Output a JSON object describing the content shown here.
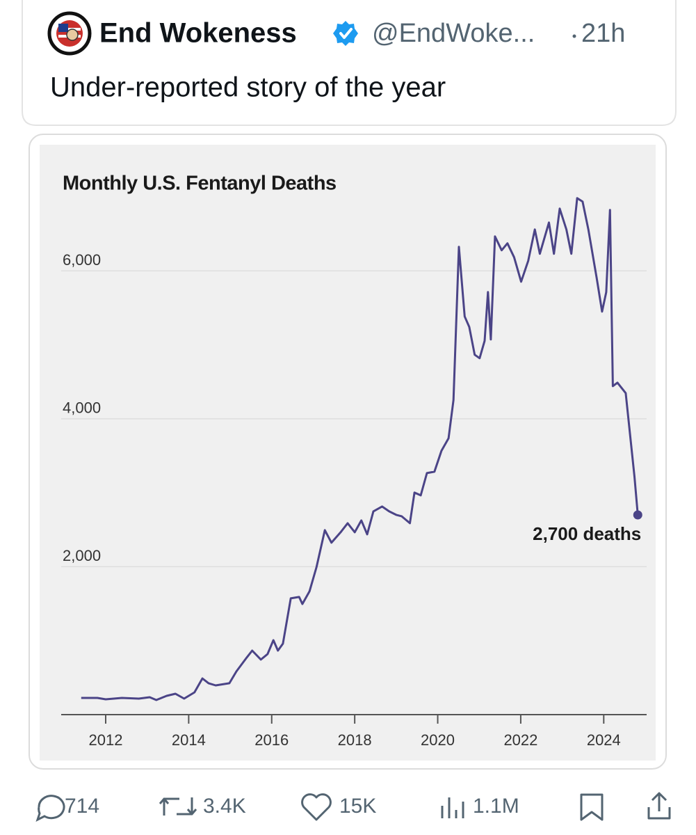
{
  "tweet": {
    "name": "End Wokeness",
    "handle": "@EndWoke...",
    "time": "21h",
    "text": "Under-reported story of the year",
    "stats": {
      "replies": "714",
      "reposts": "3.4K",
      "likes": "15K",
      "views": "1.1M"
    }
  },
  "chart_data": {
    "type": "line",
    "title": "Monthly U.S. Fentanyl Deaths",
    "x": [
      2011.41,
      2011.8,
      2012.0,
      2012.39,
      2012.8,
      2013.06,
      2013.22,
      2013.47,
      2013.68,
      2013.89,
      2014.14,
      2014.33,
      2014.48,
      2014.65,
      2014.98,
      2015.15,
      2015.4,
      2015.53,
      2015.74,
      2015.9,
      2016.04,
      2016.15,
      2016.27,
      2016.46,
      2016.66,
      2016.74,
      2016.91,
      2017.08,
      2017.28,
      2017.44,
      2017.66,
      2017.83,
      2018.0,
      2018.16,
      2018.3,
      2018.45,
      2018.66,
      2018.83,
      2019.0,
      2019.13,
      2019.33,
      2019.44,
      2019.59,
      2019.74,
      2019.92,
      2020.09,
      2020.26,
      2020.38,
      2020.51,
      2020.65,
      2020.76,
      2020.89,
      2021.01,
      2021.13,
      2021.21,
      2021.28,
      2021.38,
      2021.54,
      2021.68,
      2021.84,
      2022.01,
      2022.18,
      2022.34,
      2022.46,
      2022.68,
      2022.8,
      2022.94,
      2023.1,
      2023.22,
      2023.36,
      2023.49,
      2023.63,
      2023.83,
      2023.96,
      2024.06,
      2024.15,
      2024.22,
      2024.33,
      2024.53,
      2024.74,
      2024.82
    ],
    "series": [
      {
        "color": "#4b4487",
        "values": [
          226,
          226,
          207,
          226,
          216,
          235,
          198,
          254,
          282,
          216,
          301,
          489,
          424,
          395,
          424,
          584,
          772,
          866,
          744,
          819,
          1007,
          866,
          960,
          1572,
          1591,
          1496,
          1666,
          1995,
          2494,
          2325,
          2466,
          2588,
          2466,
          2626,
          2438,
          2748,
          2814,
          2748,
          2701,
          2682,
          2588,
          3002,
          2965,
          3266,
          3285,
          3567,
          3736,
          4254,
          6325,
          5384,
          5242,
          4866,
          4819,
          5054,
          5713,
          5073,
          6466,
          6278,
          6372,
          6184,
          5854,
          6136,
          6560,
          6231,
          6654,
          6231,
          6842,
          6560,
          6231,
          6984,
          6936,
          6560,
          5901,
          5449,
          5713,
          6824,
          4442,
          4489,
          4348,
          3219,
          2700
        ]
      }
    ],
    "annotation": "2,700 deaths",
    "xlim": [
      2011,
      2025
    ],
    "xticks": [
      2012,
      2014,
      2016,
      2018,
      2020,
      2022,
      2024
    ],
    "ylim": [
      0,
      7000
    ],
    "yticks": [
      {
        "value": 2000,
        "label": "2,000"
      },
      {
        "value": 4000,
        "label": "4,000"
      },
      {
        "value": 6000,
        "label": "6,000"
      }
    ],
    "grid": true
  }
}
